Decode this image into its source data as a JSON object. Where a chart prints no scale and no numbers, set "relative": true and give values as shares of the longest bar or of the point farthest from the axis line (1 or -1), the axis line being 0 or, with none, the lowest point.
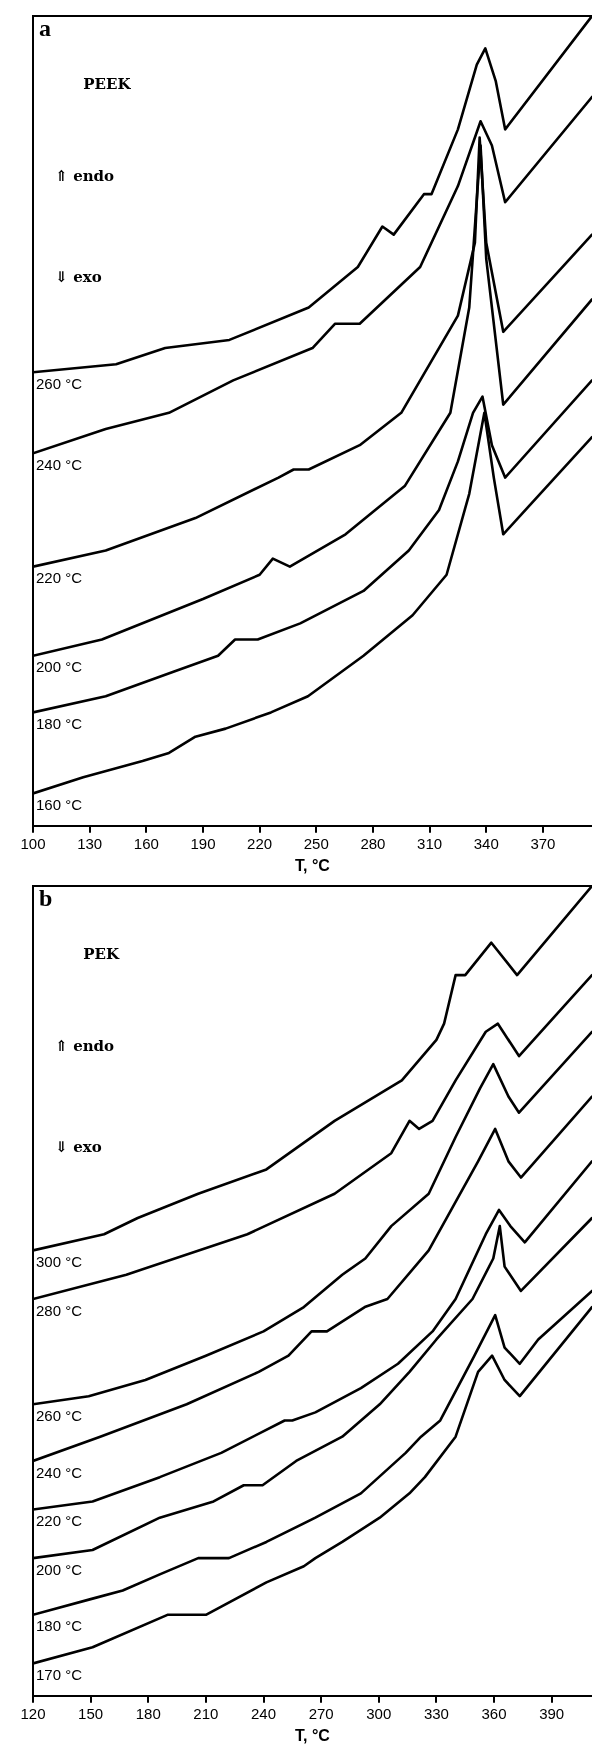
{
  "chart_data": [
    {
      "type": "line",
      "title": "a",
      "xlabel": "T, °C",
      "annotations": [
        "PEEK",
        "⇑ endo",
        "⇓ exo"
      ],
      "relative": true,
      "legend": false,
      "marker": "none",
      "xlim": [
        100,
        396
      ],
      "xticks": [
        100,
        130,
        160,
        190,
        220,
        250,
        280,
        310,
        340,
        370
      ],
      "series": [
        {
          "name": "260 °C",
          "color": "#000000",
          "x": [
            100,
            144,
            170,
            204,
            246,
            272,
            285,
            291,
            307,
            311,
            325,
            335,
            339.5,
            345,
            350,
            396
          ],
          "values": [
            0.56,
            0.57,
            0.59,
            0.6,
            0.64,
            0.69,
            0.74,
            0.73,
            0.78,
            0.78,
            0.86,
            0.94,
            0.96,
            0.92,
            0.86,
            1
          ]
        },
        {
          "name": "240 °C",
          "color": "#000000",
          "x": [
            100,
            138.5,
            172,
            206,
            248,
            260,
            273,
            305,
            325,
            337,
            343,
            350,
            396
          ],
          "values": [
            0.46,
            0.49,
            0.51,
            0.55,
            0.59,
            0.62,
            0.62,
            0.69,
            0.79,
            0.87,
            0.84,
            0.77,
            0.9
          ]
        },
        {
          "name": "220 °C",
          "color": "#000000",
          "x": [
            100,
            138.5,
            186,
            230,
            238,
            246,
            273,
            295,
            325,
            334,
            336.5,
            340,
            349,
            396
          ],
          "values": [
            0.32,
            0.34,
            0.38,
            0.43,
            0.44,
            0.44,
            0.47,
            0.51,
            0.63,
            0.72,
            0.85,
            0.72,
            0.61,
            0.73
          ]
        },
        {
          "name": "200 °C",
          "color": "#000000",
          "x": [
            100,
            136.5,
            190,
            220,
            227,
            236,
            265.5,
            297,
            321,
            331,
            337,
            340,
            349,
            396
          ],
          "values": [
            0.21,
            0.23,
            0.28,
            0.31,
            0.33,
            0.32,
            0.36,
            0.42,
            0.51,
            0.64,
            0.84,
            0.7,
            0.52,
            0.65
          ]
        },
        {
          "name": "180 °C",
          "color": "#000000",
          "x": [
            100,
            138.5,
            174,
            198,
            207,
            219,
            241.5,
            275,
            299,
            315,
            325,
            333,
            338,
            343,
            350,
            396
          ],
          "values": [
            0.14,
            0.16,
            0.19,
            0.21,
            0.23,
            0.23,
            0.25,
            0.29,
            0.34,
            0.39,
            0.45,
            0.51,
            0.53,
            0.47,
            0.43,
            0.55
          ]
        },
        {
          "name": "160 °C",
          "color": "#000000",
          "x": [
            100,
            126.6,
            158,
            172,
            186,
            202,
            226,
            245.6,
            275,
            301,
            319,
            331,
            339,
            344,
            349,
            396
          ],
          "values": [
            0.04,
            0.06,
            0.08,
            0.09,
            0.11,
            0.12,
            0.14,
            0.16,
            0.21,
            0.26,
            0.31,
            0.41,
            0.51,
            0.43,
            0.36,
            0.48
          ]
        }
      ]
    },
    {
      "type": "line",
      "title": "b",
      "xlabel": "T, °C",
      "annotations": [
        "PEK",
        "⇑ endo",
        "⇓ exo"
      ],
      "relative": true,
      "legend": false,
      "marker": "none",
      "xlim": [
        120,
        411
      ],
      "xticks": [
        120,
        150,
        180,
        210,
        240,
        270,
        300,
        330,
        360,
        390
      ],
      "series": [
        {
          "name": "300 °C",
          "color": "#000000",
          "x": [
            120,
            157,
            174.5,
            206,
            241.5,
            277,
            312,
            330,
            334,
            340,
            345,
            358.6,
            372,
            411
          ],
          "values": [
            0.55,
            0.57,
            0.59,
            0.62,
            0.65,
            0.71,
            0.76,
            0.81,
            0.83,
            0.89,
            0.89,
            0.93,
            0.89,
            1
          ]
        },
        {
          "name": "280 °C",
          "color": "#000000",
          "x": [
            120,
            168.6,
            231.6,
            277,
            306.5,
            316,
            321,
            328,
            340,
            355.7,
            362,
            373,
            411
          ],
          "values": [
            0.49,
            0.52,
            0.57,
            0.62,
            0.67,
            0.71,
            0.7,
            0.71,
            0.76,
            0.82,
            0.83,
            0.79,
            0.89
          ]
        },
        {
          "name": "260 °C",
          "color": "#000000",
          "x": [
            120,
            149,
            178.5,
            210,
            240,
            261,
            281,
            293,
            306.5,
            326,
            340,
            352.7,
            359.6,
            367.5,
            373,
            411
          ],
          "values": [
            0.36,
            0.37,
            0.39,
            0.42,
            0.45,
            0.48,
            0.52,
            0.54,
            0.58,
            0.62,
            0.69,
            0.75,
            0.78,
            0.74,
            0.72,
            0.82
          ]
        },
        {
          "name": "240 °C",
          "color": "#000000",
          "x": [
            120,
            155,
            200,
            237.5,
            253,
            265,
            273,
            292.7,
            304.5,
            326,
            340,
            351.7,
            360.6,
            367.5,
            374,
            411
          ],
          "values": [
            0.29,
            0.32,
            0.36,
            0.4,
            0.42,
            0.45,
            0.45,
            0.48,
            0.49,
            0.55,
            0.61,
            0.66,
            0.7,
            0.66,
            0.64,
            0.74
          ]
        },
        {
          "name": "220 °C",
          "color": "#000000",
          "x": [
            120,
            151,
            186,
            218,
            251,
            255,
            267,
            290.7,
            310,
            328,
            340,
            355.7,
            362.6,
            368.5,
            376,
            411
          ],
          "values": [
            0.23,
            0.24,
            0.27,
            0.3,
            0.34,
            0.34,
            0.35,
            0.38,
            0.41,
            0.45,
            0.49,
            0.57,
            0.6,
            0.58,
            0.56,
            0.66
          ]
        },
        {
          "name": "200 °C",
          "color": "#000000",
          "x": [
            120,
            151,
            186,
            214,
            229.7,
            239.5,
            257,
            281,
            300.5,
            316,
            330,
            348.8,
            359.6,
            363,
            365.5,
            374,
            411
          ],
          "values": [
            0.17,
            0.18,
            0.22,
            0.24,
            0.26,
            0.26,
            0.29,
            0.32,
            0.36,
            0.4,
            0.44,
            0.49,
            0.54,
            0.58,
            0.53,
            0.5,
            0.59
          ]
        },
        {
          "name": "180 °C",
          "color": "#000000",
          "x": [
            120,
            151,
            166.7,
            186,
            206,
            210,
            222,
            241.5,
            267,
            290.7,
            314,
            322,
            332,
            349.8,
            360.6,
            365.5,
            373.4,
            383,
            411
          ],
          "values": [
            0.1,
            0.12,
            0.13,
            0.15,
            0.17,
            0.17,
            0.17,
            0.19,
            0.22,
            0.25,
            0.3,
            0.32,
            0.34,
            0.42,
            0.47,
            0.43,
            0.41,
            0.44,
            0.5
          ]
        },
        {
          "name": "170 °C",
          "color": "#000000",
          "x": [
            120,
            151,
            190,
            210,
            241.5,
            261,
            267,
            281,
            300.5,
            316,
            324,
            340,
            351.7,
            359,
            365.5,
            373.4,
            411
          ],
          "values": [
            0.04,
            0.06,
            0.1,
            0.1,
            0.14,
            0.16,
            0.17,
            0.19,
            0.22,
            0.25,
            0.27,
            0.32,
            0.4,
            0.42,
            0.39,
            0.37,
            0.48
          ]
        }
      ]
    }
  ]
}
